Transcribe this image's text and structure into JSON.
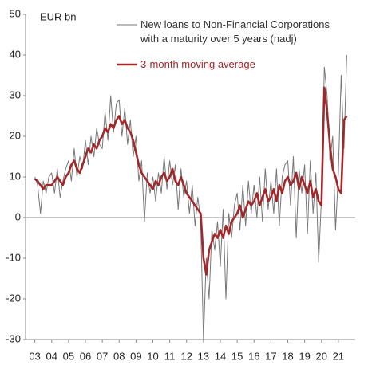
{
  "chart_data": {
    "type": "line",
    "y_label": "EUR bn",
    "x": [
      2003,
      2003.1667,
      2003.3333,
      2003.5,
      2003.6667,
      2003.8333,
      2004,
      2004.1667,
      2004.3333,
      2004.5,
      2004.6667,
      2004.8333,
      2005,
      2005.1667,
      2005.3333,
      2005.5,
      2005.6667,
      2005.8333,
      2006,
      2006.1667,
      2006.3333,
      2006.5,
      2006.6667,
      2006.8333,
      2007,
      2007.1667,
      2007.3333,
      2007.5,
      2007.6667,
      2007.8333,
      2008,
      2008.1667,
      2008.3333,
      2008.5,
      2008.6667,
      2008.8333,
      2009,
      2009.1667,
      2009.3333,
      2009.5,
      2009.6667,
      2009.8333,
      2010,
      2010.1667,
      2010.3333,
      2010.5,
      2010.6667,
      2010.8333,
      2011,
      2011.1667,
      2011.3333,
      2011.5,
      2011.6667,
      2011.8333,
      2012,
      2012.1667,
      2012.3333,
      2012.5,
      2012.6667,
      2012.8333,
      2013,
      2013.1667,
      2013.3333,
      2013.5,
      2013.6667,
      2013.8333,
      2014,
      2014.1667,
      2014.3333,
      2014.5,
      2014.6667,
      2014.8333,
      2015,
      2015.1667,
      2015.3333,
      2015.5,
      2015.6667,
      2015.8333,
      2016,
      2016.1667,
      2016.3333,
      2016.5,
      2016.6667,
      2016.8333,
      2017,
      2017.1667,
      2017.3333,
      2017.5,
      2017.6667,
      2017.8333,
      2018,
      2018.1667,
      2018.3333,
      2018.5,
      2018.6667,
      2018.8333,
      2019,
      2019.1667,
      2019.3333,
      2019.5,
      2019.6667,
      2019.8333,
      2020,
      2020.1667,
      2020.3333,
      2020.5,
      2020.6667,
      2020.8333,
      2021,
      2021.1667,
      2021.3333,
      2021.5
    ],
    "series": [
      {
        "name": "New loans to Non-Financial Corporations with a maturity over 5 years (nadj)",
        "color": "#777777",
        "width": 1,
        "values": [
          10,
          8,
          1,
          9,
          6,
          10,
          11,
          6,
          12,
          5,
          9,
          12,
          14,
          9,
          17,
          10,
          15,
          12,
          19,
          13,
          20,
          15,
          22,
          18,
          17,
          26,
          19,
          30,
          21,
          28,
          29,
          20,
          27,
          18,
          24,
          15,
          20,
          9,
          14,
          -1,
          11,
          6,
          10,
          4,
          11,
          6,
          15,
          7,
          14,
          8,
          13,
          2,
          12,
          5,
          9,
          1,
          8,
          -2,
          5,
          -1,
          -30,
          -10,
          -20,
          -3,
          -8,
          -1,
          -12,
          2,
          -20,
          1,
          -5,
          3,
          6,
          -3,
          8,
          -2,
          9,
          1,
          8,
          0,
          10,
          -1,
          12,
          2,
          9,
          1,
          12,
          -2,
          10,
          13,
          14,
          3,
          15,
          -5,
          12,
          6,
          13,
          -4,
          14,
          1,
          11,
          -11,
          5,
          37,
          30,
          14,
          20,
          -3,
          11,
          35,
          17,
          40
        ]
      },
      {
        "name": "3-month moving average",
        "color": "#a0282b",
        "width": 2.6,
        "values": [
          9.5,
          9,
          8,
          7,
          8,
          8,
          8,
          9,
          10,
          9,
          8,
          10,
          11,
          13,
          14,
          12,
          11,
          13,
          15,
          17,
          16,
          18,
          17,
          19,
          20,
          22,
          21,
          23,
          22,
          24,
          25,
          23,
          24,
          22,
          21,
          19,
          16,
          13,
          11,
          10,
          9,
          8,
          7,
          9,
          8,
          10,
          11,
          9,
          10,
          12,
          9,
          8,
          10,
          8,
          6,
          5,
          4,
          3,
          2,
          1,
          -10,
          -14,
          -8,
          -6,
          -4,
          -5,
          -3,
          -5,
          -2,
          -4,
          -1,
          0,
          1,
          3,
          0,
          2,
          4,
          3,
          4,
          6,
          3,
          5,
          7,
          4,
          5,
          7,
          4,
          8,
          6,
          9,
          10,
          8,
          9,
          11,
          7,
          10,
          8,
          6,
          9,
          5,
          7,
          4,
          3,
          32,
          26,
          18,
          12,
          10,
          7,
          6,
          24,
          25
        ]
      }
    ],
    "xlim": [
      2002.45,
      2022
    ],
    "xticks": [
      {
        "value": 2003,
        "label": "03"
      },
      {
        "value": 2004,
        "label": "04"
      },
      {
        "value": 2005,
        "label": "05"
      },
      {
        "value": 2006,
        "label": "06"
      },
      {
        "value": 2007,
        "label": "07"
      },
      {
        "value": 2008,
        "label": "08"
      },
      {
        "value": 2009,
        "label": "09"
      },
      {
        "value": 2010,
        "label": "10"
      },
      {
        "value": 2011,
        "label": "11"
      },
      {
        "value": 2012,
        "label": "12"
      },
      {
        "value": 2013,
        "label": "13"
      },
      {
        "value": 2014,
        "label": "14"
      },
      {
        "value": 2015,
        "label": "15"
      },
      {
        "value": 2016,
        "label": "16"
      },
      {
        "value": 2017,
        "label": "17"
      },
      {
        "value": 2018,
        "label": "18"
      },
      {
        "value": 2019,
        "label": "19"
      },
      {
        "value": 2020,
        "label": "20"
      },
      {
        "value": 2021,
        "label": "21"
      }
    ],
    "ylim": [
      -30,
      50
    ],
    "yticks": [
      -30,
      -20,
      -10,
      0,
      10,
      20,
      30,
      40,
      50
    ]
  }
}
